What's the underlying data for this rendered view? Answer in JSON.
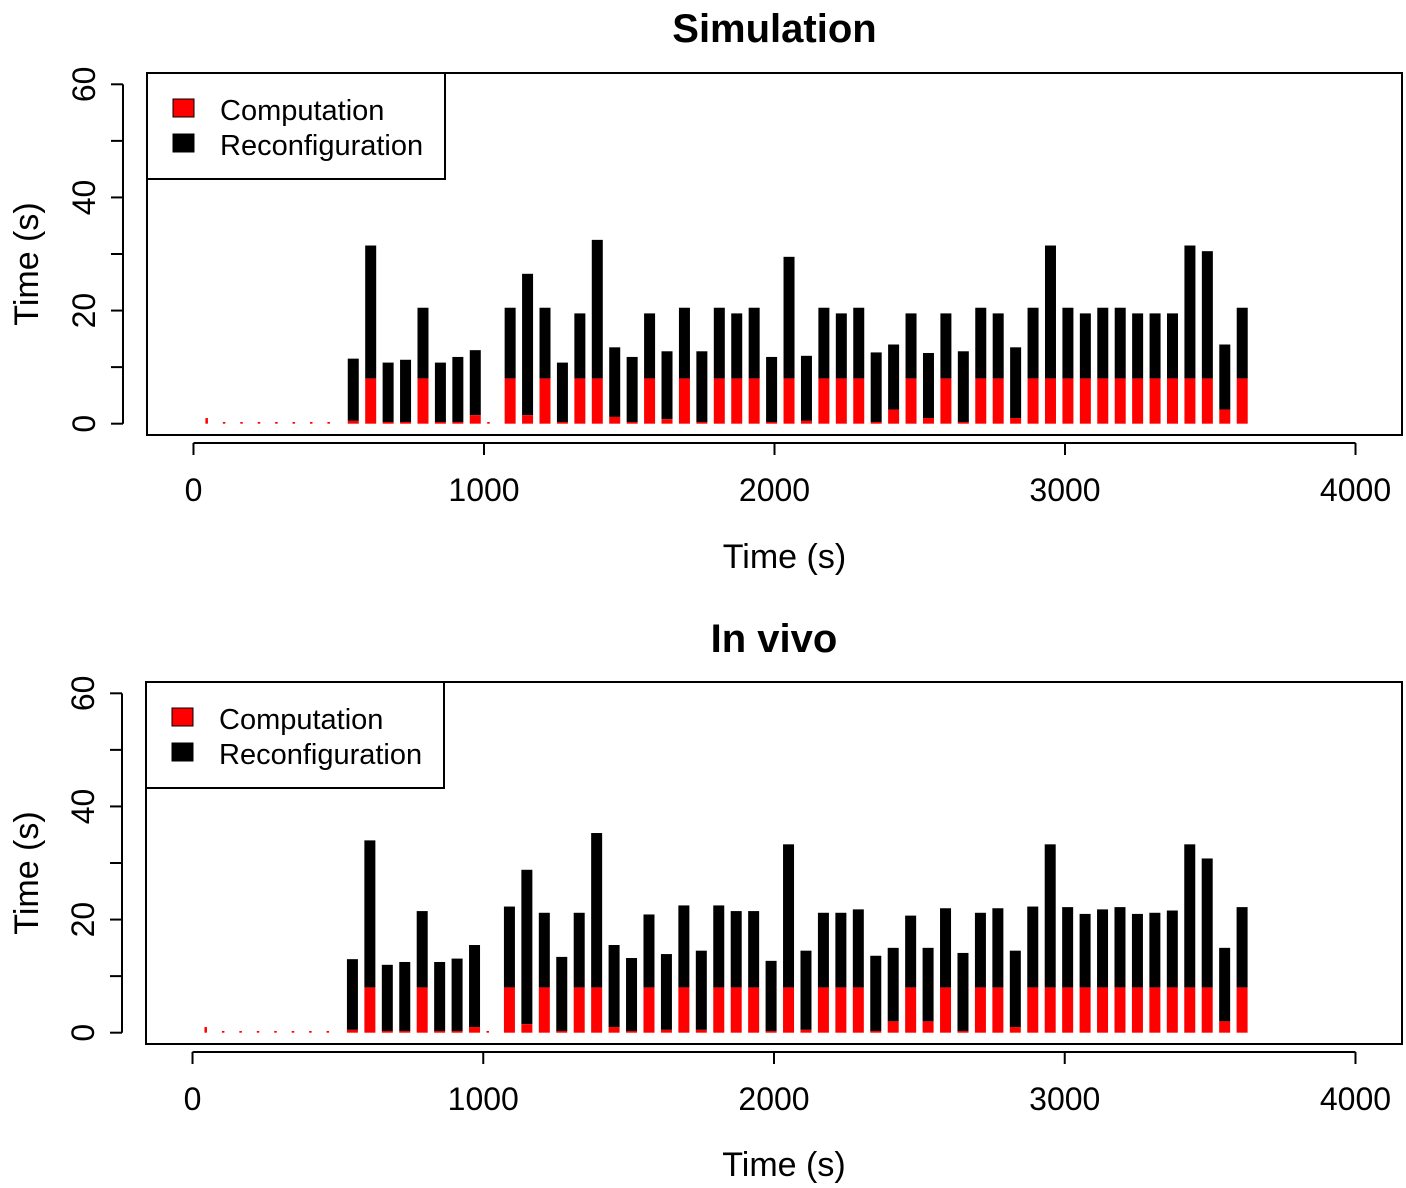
{
  "chart_data": [
    {
      "type": "bar",
      "stacked": true,
      "title": "Simulation",
      "xlabel": "Time (s)",
      "ylabel": "Time (s)",
      "xlim": [
        -160,
        4160
      ],
      "ylim": [
        -2,
        62
      ],
      "xticks": [
        "0",
        "1000",
        "2000",
        "3000",
        "4000"
      ],
      "yticks": [
        "0",
        "20",
        "40",
        "60"
      ],
      "legend": {
        "position": "top-left",
        "entries": [
          {
            "name": "Computation",
            "color": "#ff0000"
          },
          {
            "name": "Reconfiguration",
            "color": "#000000"
          }
        ]
      },
      "x": [
        60,
        120,
        180,
        240,
        300,
        360,
        420,
        480,
        550,
        610,
        670,
        730,
        790,
        850,
        910,
        970,
        1030,
        1090,
        1150,
        1210,
        1270,
        1330,
        1390,
        1450,
        1510,
        1570,
        1630,
        1690,
        1750,
        1810,
        1870,
        1930,
        1990,
        2050,
        2110,
        2170,
        2230,
        2290,
        2350,
        2410,
        2470,
        2530,
        2590,
        2650,
        2710,
        2770,
        2830,
        2890,
        2950,
        3010,
        3070,
        3130,
        3190,
        3250,
        3310,
        3370,
        3430,
        3490,
        3550,
        3610
      ],
      "series": [
        {
          "name": "Computation",
          "color": "#ff0000",
          "values": [
            1.0,
            0.3,
            0.3,
            0.3,
            0.3,
            0.3,
            0.3,
            0.3,
            0.5,
            8.0,
            0.3,
            0.3,
            8.0,
            0.3,
            0.3,
            1.5,
            0.3,
            8.0,
            1.5,
            8.0,
            0.3,
            8.0,
            8.0,
            1.2,
            0.3,
            8.0,
            0.8,
            8.0,
            0.3,
            8.0,
            8.0,
            8.0,
            0.3,
            8.0,
            0.5,
            8.0,
            8.0,
            8.0,
            0.3,
            2.5,
            8.0,
            1.0,
            8.0,
            0.3,
            8.0,
            8.0,
            1.0,
            8.0,
            8.0,
            8.0,
            8.0,
            8.0,
            8.0,
            8.0,
            8.0,
            8.0,
            8.0,
            8.0,
            2.5,
            8.0
          ]
        },
        {
          "name": "Reconfiguration",
          "color": "#000000",
          "values": [
            0,
            0,
            0,
            0,
            0,
            0,
            0,
            0,
            11.0,
            23.5,
            10.5,
            11.0,
            12.5,
            10.5,
            11.5,
            11.5,
            0,
            12.5,
            25.0,
            12.5,
            10.5,
            11.5,
            24.5,
            12.3,
            11.5,
            11.5,
            12.0,
            12.5,
            12.5,
            12.5,
            11.5,
            12.5,
            11.5,
            21.5,
            11.5,
            12.5,
            11.5,
            12.5,
            12.3,
            11.5,
            11.5,
            11.5,
            11.5,
            12.5,
            12.5,
            11.5,
            12.5,
            12.5,
            23.5,
            12.5,
            11.5,
            12.5,
            12.5,
            11.5,
            11.5,
            11.5,
            23.5,
            22.5,
            11.5,
            12.5
          ]
        }
      ]
    },
    {
      "type": "bar",
      "stacked": true,
      "title": "In vivo",
      "xlabel": "Time (s)",
      "ylabel": "Time (s)",
      "xlim": [
        -160,
        4160
      ],
      "ylim": [
        -2,
        62
      ],
      "xticks": [
        "0",
        "1000",
        "2000",
        "3000",
        "4000"
      ],
      "yticks": [
        "0",
        "20",
        "40",
        "60"
      ],
      "legend": {
        "position": "top-left",
        "entries": [
          {
            "name": "Computation",
            "color": "#ff0000"
          },
          {
            "name": "Reconfiguration",
            "color": "#000000"
          }
        ]
      },
      "x": [
        60,
        120,
        180,
        240,
        300,
        360,
        420,
        480,
        550,
        610,
        670,
        730,
        790,
        850,
        910,
        970,
        1030,
        1090,
        1150,
        1210,
        1270,
        1330,
        1390,
        1450,
        1510,
        1570,
        1630,
        1690,
        1750,
        1810,
        1870,
        1930,
        1990,
        2050,
        2110,
        2170,
        2230,
        2290,
        2350,
        2410,
        2470,
        2530,
        2590,
        2650,
        2710,
        2770,
        2830,
        2890,
        2950,
        3010,
        3070,
        3130,
        3190,
        3250,
        3310,
        3370,
        3430,
        3490,
        3550,
        3610
      ],
      "series": [
        {
          "name": "Computation",
          "color": "#ff0000",
          "values": [
            1.0,
            0.3,
            0.3,
            0.3,
            0.3,
            0.3,
            0.3,
            0.3,
            0.5,
            8.0,
            0.3,
            0.3,
            8.0,
            0.3,
            0.3,
            1.0,
            0.3,
            8.0,
            1.5,
            8.0,
            0.3,
            8.0,
            8.0,
            1.0,
            0.3,
            8.0,
            0.5,
            8.0,
            0.5,
            8.0,
            8.0,
            8.0,
            0.3,
            8.0,
            0.5,
            8.0,
            8.0,
            8.0,
            0.3,
            2.0,
            8.0,
            2.0,
            8.0,
            0.3,
            8.0,
            8.0,
            1.0,
            8.0,
            8.0,
            8.0,
            8.0,
            8.0,
            8.0,
            8.0,
            8.0,
            8.0,
            8.0,
            8.0,
            2.0,
            8.0
          ]
        },
        {
          "name": "Reconfiguration",
          "color": "#000000",
          "values": [
            0,
            0,
            0,
            0,
            0,
            0,
            0,
            0,
            12.5,
            26.0,
            11.7,
            12.2,
            13.5,
            12.2,
            12.8,
            14.5,
            0,
            14.3,
            27.3,
            13.2,
            13.1,
            13.2,
            27.3,
            14.5,
            12.9,
            12.9,
            13.4,
            14.5,
            14.0,
            14.5,
            13.5,
            13.5,
            12.4,
            25.3,
            14.0,
            13.2,
            13.2,
            13.8,
            13.3,
            13.0,
            12.7,
            13.0,
            14.0,
            13.8,
            13.2,
            14.0,
            13.5,
            14.3,
            25.3,
            14.2,
            13.0,
            13.8,
            14.2,
            13.0,
            13.2,
            13.6,
            25.3,
            22.8,
            13.0,
            14.2
          ]
        }
      ]
    }
  ]
}
